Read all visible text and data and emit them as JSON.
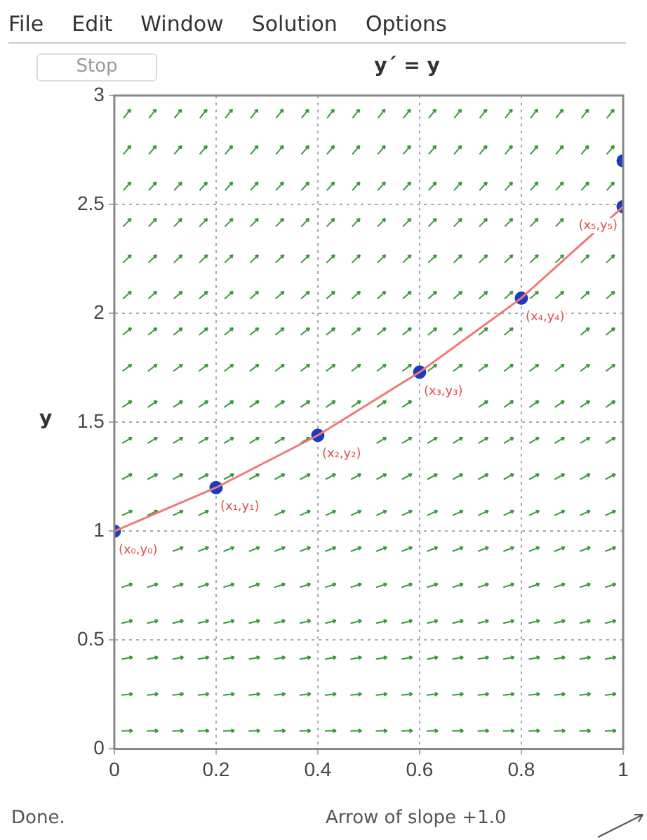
{
  "chart_data": {
    "type": "line",
    "title": "y´ = y",
    "ylabel": "y",
    "x": [
      0,
      0.2,
      0.4,
      0.6,
      0.8,
      1
    ],
    "series": [
      {
        "color": "#f07878",
        "marker": "none",
        "values": [
          1,
          1.2,
          1.44,
          1.73,
          2.07,
          2.49
        ]
      },
      {
        "type": "scatter",
        "color": "#1c3cc0",
        "marker": "circle",
        "x": [
          0,
          0.2,
          0.4,
          0.6,
          0.8,
          1,
          1
        ],
        "values": [
          1,
          1.2,
          1.44,
          1.73,
          2.07,
          2.49,
          2.7
        ]
      }
    ],
    "xlim": [
      0,
      1
    ],
    "xticks": [
      0,
      0.2,
      0.4,
      0.6,
      0.8,
      1
    ],
    "ylim": [
      0,
      3
    ],
    "yticks": [
      0,
      0.5,
      1,
      1.5,
      2,
      2.5,
      3
    ],
    "grid": true,
    "legend": false,
    "annotations": [
      "File",
      "Edit",
      "Window",
      "Solution",
      "Options",
      "Stop",
      "Done.",
      "Arrow of slope +1.0",
      {
        "text": "(x₀,y₀)",
        "x": 0,
        "y": 1
      },
      {
        "text": "(x₁,y₁)",
        "x": 0.2,
        "y": 1.2
      },
      {
        "text": "(x₂,y₂)",
        "x": 0.4,
        "y": 1.44
      },
      {
        "text": "(x₃,y₃)",
        "x": 0.6,
        "y": 1.73
      },
      {
        "text": "(x₄,y₄)",
        "x": 0.8,
        "y": 2.07
      },
      {
        "text": "(x₅,y₅)",
        "x": 1,
        "y": 2.49
      }
    ]
  }
}
